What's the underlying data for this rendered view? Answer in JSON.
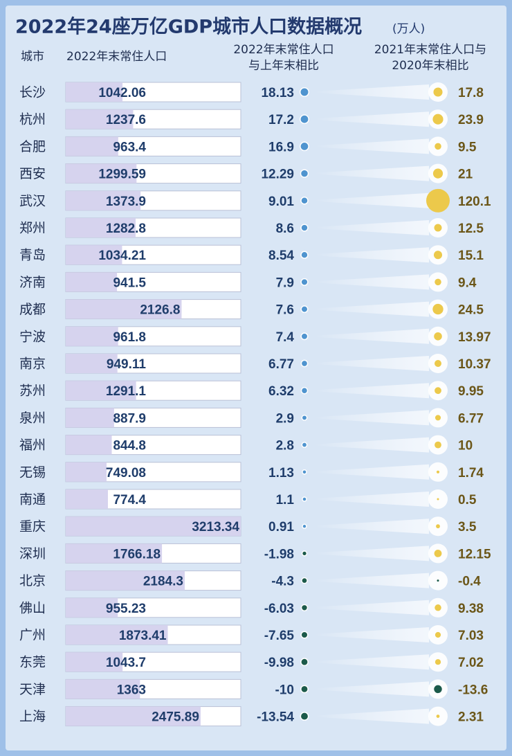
{
  "title": "2022年24座万亿GDP城市人口数据概况",
  "unit": "(万人)",
  "headers": [
    [
      "城市"
    ],
    [
      "2022年末常住人口"
    ],
    [
      "2022年末常住人口",
      "与上年末相比"
    ],
    [
      "2021年末常住人口与",
      "2020年末相比"
    ]
  ],
  "rows": [
    {
      "city": "长沙",
      "pop": 1042.06,
      "change_2022": 18.13,
      "change_2021": 17.8
    },
    {
      "city": "杭州",
      "pop": 1237.6,
      "change_2022": 17.2,
      "change_2021": 23.9
    },
    {
      "city": "合肥",
      "pop": 963.4,
      "change_2022": 16.9,
      "change_2021": 9.5
    },
    {
      "city": "西安",
      "pop": 1299.59,
      "change_2022": 12.29,
      "change_2021": 21
    },
    {
      "city": "武汉",
      "pop": 1373.9,
      "change_2022": 9.01,
      "change_2021": 120.1
    },
    {
      "city": "郑州",
      "pop": 1282.8,
      "change_2022": 8.6,
      "change_2021": 12.5
    },
    {
      "city": "青岛",
      "pop": 1034.21,
      "change_2022": 8.54,
      "change_2021": 15.1
    },
    {
      "city": "济南",
      "pop": 941.5,
      "change_2022": 7.9,
      "change_2021": 9.4
    },
    {
      "city": "成都",
      "pop": 2126.8,
      "change_2022": 7.6,
      "change_2021": 24.5
    },
    {
      "city": "宁波",
      "pop": 961.8,
      "change_2022": 7.4,
      "change_2021": 13.97
    },
    {
      "city": "南京",
      "pop": 949.11,
      "change_2022": 6.77,
      "change_2021": 10.37
    },
    {
      "city": "苏州",
      "pop": 1291.1,
      "change_2022": 6.32,
      "change_2021": 9.95
    },
    {
      "city": "泉州",
      "pop": 887.9,
      "change_2022": 2.9,
      "change_2021": 6.77
    },
    {
      "city": "福州",
      "pop": 844.8,
      "change_2022": 2.8,
      "change_2021": 10
    },
    {
      "city": "无锡",
      "pop": 749.08,
      "change_2022": 1.13,
      "change_2021": 1.74
    },
    {
      "city": "南通",
      "pop": 774.4,
      "change_2022": 1.1,
      "change_2021": 0.5
    },
    {
      "city": "重庆",
      "pop": 3213.34,
      "change_2022": 0.91,
      "change_2021": 3.5
    },
    {
      "city": "深圳",
      "pop": 1766.18,
      "change_2022": -1.98,
      "change_2021": 12.15
    },
    {
      "city": "北京",
      "pop": 2184.3,
      "change_2022": -4.3,
      "change_2021": -0.4
    },
    {
      "city": "佛山",
      "pop": 955.23,
      "change_2022": -6.03,
      "change_2021": 9.38
    },
    {
      "city": "广州",
      "pop": 1873.41,
      "change_2022": -7.65,
      "change_2021": 7.03
    },
    {
      "city": "东莞",
      "pop": 1043.7,
      "change_2022": -9.98,
      "change_2021": 7.02
    },
    {
      "city": "天津",
      "pop": 1363,
      "change_2022": -10,
      "change_2021": -13.6
    },
    {
      "city": "上海",
      "pop": 2475.89,
      "change_2022": -13.54,
      "change_2021": 2.31
    }
  ]
}
